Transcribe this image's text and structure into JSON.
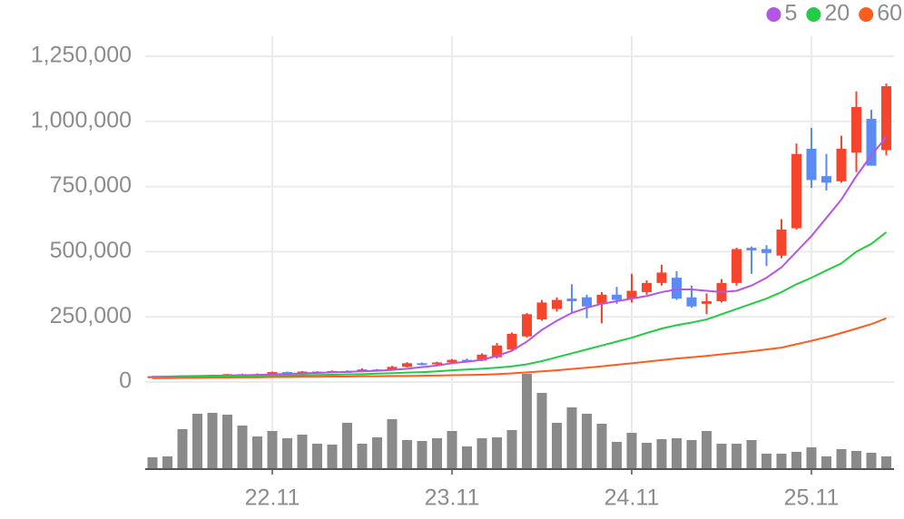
{
  "chart_data": {
    "type": "candlestick",
    "categories": [
      null,
      null,
      null,
      null,
      null,
      null,
      null,
      null,
      "22.11",
      null,
      null,
      null,
      null,
      null,
      null,
      null,
      null,
      null,
      null,
      null,
      "23.11",
      null,
      null,
      null,
      null,
      null,
      null,
      null,
      null,
      null,
      null,
      null,
      "24.11",
      null,
      null,
      null,
      null,
      null,
      null,
      null,
      null,
      null,
      null,
      null,
      "25.11",
      null,
      null,
      null,
      null,
      null
    ],
    "open": [
      20000,
      22000,
      23000,
      25000,
      24000,
      27000,
      30000,
      28000,
      30000,
      38000,
      36000,
      40000,
      38000,
      42000,
      40000,
      48000,
      46000,
      58000,
      72000,
      68000,
      75000,
      85000,
      82000,
      95000,
      125000,
      175000,
      240000,
      280000,
      320000,
      325000,
      300000,
      335000,
      320000,
      345000,
      380000,
      400000,
      325000,
      300000,
      310000,
      380000,
      515000,
      510000,
      485000,
      590000,
      895000,
      790000,
      770000,
      880000,
      1010000,
      890000
    ],
    "high": [
      23000,
      24000,
      26000,
      26000,
      28000,
      31000,
      32000,
      33000,
      40000,
      40000,
      42000,
      42000,
      44000,
      45000,
      52000,
      50000,
      62000,
      76000,
      75000,
      78000,
      88000,
      90000,
      110000,
      150000,
      190000,
      265000,
      315000,
      325000,
      375000,
      335000,
      345000,
      365000,
      415000,
      390000,
      450000,
      425000,
      370000,
      340000,
      395000,
      515000,
      520000,
      525000,
      625000,
      915000,
      975000,
      875000,
      945000,
      1115000,
      1045000,
      1145000
    ],
    "low": [
      19000,
      21000,
      22000,
      23000,
      23000,
      26000,
      27000,
      27000,
      29000,
      34000,
      35000,
      36000,
      37000,
      39000,
      39000,
      44000,
      45000,
      56000,
      64000,
      66000,
      72000,
      78000,
      80000,
      90000,
      120000,
      170000,
      235000,
      270000,
      265000,
      245000,
      225000,
      300000,
      305000,
      335000,
      370000,
      315000,
      285000,
      260000,
      305000,
      370000,
      415000,
      445000,
      475000,
      585000,
      745000,
      735000,
      765000,
      805000,
      830000,
      870000
    ],
    "close": [
      22000,
      23000,
      25000,
      24000,
      27000,
      30000,
      28000,
      30000,
      38000,
      36000,
      40000,
      38000,
      42000,
      40000,
      48000,
      46000,
      58000,
      72000,
      68000,
      75000,
      85000,
      82000,
      105000,
      140000,
      185000,
      260000,
      305000,
      315000,
      310000,
      290000,
      335000,
      315000,
      350000,
      380000,
      420000,
      320000,
      290000,
      310000,
      380000,
      510000,
      505000,
      495000,
      585000,
      875000,
      775000,
      765000,
      895000,
      1055000,
      830000,
      1135000
    ],
    "up_color": "#f5452d",
    "down_color": "#5b8cf5",
    "ylim": [
      0,
      1250000
    ],
    "yticks": [
      0,
      {
        "value": 250000,
        "label": "250,000"
      },
      {
        "value": 500000,
        "label": "500,000"
      },
      {
        "value": 750000,
        "label": "750,000"
      },
      {
        "value": 1000000,
        "label": "1,000,000"
      },
      {
        "value": 1250000,
        "label": "1,250,000"
      }
    ],
    "grid": true,
    "legend": "top-right",
    "series": [
      {
        "name": "5",
        "color": "#b455e8",
        "values": [
          20000,
          21000,
          22000,
          23000,
          24000,
          25000,
          26000,
          27000,
          29000,
          31000,
          33000,
          35000,
          37000,
          39000,
          41000,
          43000,
          46000,
          51000,
          57000,
          63000,
          72000,
          78000,
          85000,
          100000,
          120000,
          155000,
          200000,
          235000,
          265000,
          285000,
          300000,
          310000,
          320000,
          330000,
          345000,
          355000,
          355000,
          350000,
          345000,
          350000,
          370000,
          400000,
          440000,
          500000,
          560000,
          630000,
          700000,
          790000,
          870000,
          940000
        ]
      },
      {
        "name": "20",
        "color": "#22cc44",
        "values": [
          18000,
          19000,
          20000,
          21000,
          21000,
          22000,
          23000,
          23000,
          24000,
          25000,
          26000,
          27000,
          28000,
          29000,
          30000,
          32000,
          34000,
          36000,
          38000,
          41000,
          45000,
          48000,
          51000,
          55000,
          60000,
          68000,
          80000,
          95000,
          110000,
          125000,
          140000,
          155000,
          170000,
          188000,
          205000,
          218000,
          228000,
          240000,
          260000,
          280000,
          300000,
          320000,
          345000,
          375000,
          400000,
          428000,
          455000,
          500000,
          530000,
          575000
        ]
      },
      {
        "name": "60",
        "color": "#ff5c1e",
        "values": [
          15000,
          15000,
          16000,
          16000,
          17000,
          17000,
          18000,
          18000,
          19000,
          19000,
          20000,
          20000,
          21000,
          21000,
          22000,
          22000,
          23000,
          23000,
          24000,
          25000,
          26000,
          27000,
          28000,
          30000,
          33000,
          37000,
          41000,
          45000,
          50000,
          55000,
          60000,
          66000,
          72000,
          78000,
          84000,
          90000,
          95000,
          100000,
          106000,
          112000,
          118000,
          125000,
          132000,
          145000,
          158000,
          172000,
          188000,
          205000,
          222000,
          245000
        ]
      }
    ],
    "volume": {
      "color": "#8a8a8a",
      "values": [
        13,
        14,
        44,
        61,
        62,
        60,
        48,
        36,
        42,
        34,
        38,
        28,
        27,
        51,
        28,
        35,
        55,
        32,
        31,
        34,
        42,
        25,
        34,
        35,
        43,
        105,
        84,
        51,
        68,
        61,
        50,
        30,
        40,
        29,
        33,
        34,
        32,
        42,
        28,
        28,
        32,
        17,
        17,
        19,
        24,
        14,
        22,
        20,
        18,
        14
      ]
    }
  }
}
